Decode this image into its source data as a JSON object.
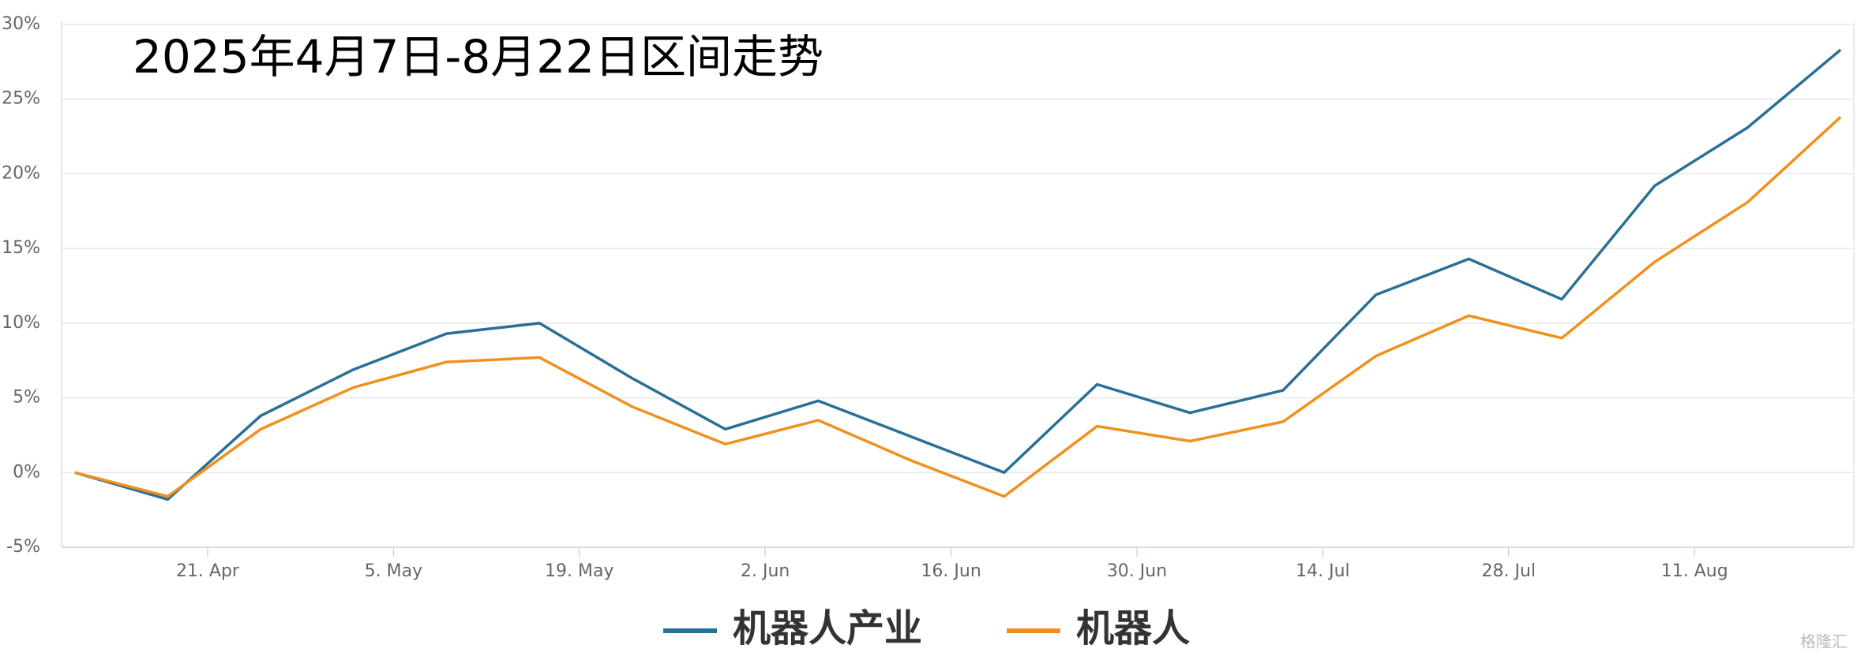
{
  "chart_data": {
    "type": "line",
    "title": "2025年4月7日-8月22日区间走势",
    "x": [
      "11. Apr",
      "18. Apr",
      "25. Apr",
      "2. May",
      "9. May",
      "16. May",
      "23. May",
      "30. May",
      "6. Jun",
      "13. Jun",
      "20. Jun",
      "27. Jun",
      "4. Jul",
      "11. Jul",
      "18. Jul",
      "25. Jul",
      "1. Aug",
      "8. Aug",
      "15. Aug",
      "22. Aug"
    ],
    "xlim": [
      "10. Apr",
      "23. Aug"
    ],
    "xticks": [
      "21. Apr",
      "5. May",
      "19. May",
      "2. Jun",
      "16. Jun",
      "30. Jun",
      "14. Jul",
      "28. Jul",
      "11. Aug"
    ],
    "ylim": [
      -5,
      30
    ],
    "yticks": [
      {
        "value": -5,
        "label": "-5%"
      },
      {
        "value": 0,
        "label": "0%"
      },
      {
        "value": 5,
        "label": "5%"
      },
      {
        "value": 10,
        "label": "10%"
      },
      {
        "value": 15,
        "label": "15%"
      },
      {
        "value": 20,
        "label": "20%"
      },
      {
        "value": 25,
        "label": "25%"
      },
      {
        "value": 30,
        "label": "30%"
      }
    ],
    "grid": true,
    "legend": "bottom",
    "series": [
      {
        "name": "机器人产业",
        "color": "#2a6f97",
        "values": [
          0,
          -1.8,
          3.8,
          6.9,
          9.3,
          10.0,
          6.3,
          2.9,
          4.8,
          2.4,
          0.0,
          5.9,
          4.0,
          5.5,
          11.9,
          14.3,
          11.6,
          19.2,
          23.1,
          28.3
        ]
      },
      {
        "name": "机器人",
        "color": "#f0901e",
        "values": [
          0,
          -1.6,
          2.9,
          5.7,
          7.4,
          7.7,
          4.4,
          1.9,
          3.5,
          0.8,
          -1.6,
          3.1,
          2.1,
          3.4,
          7.8,
          10.5,
          9.0,
          14.1,
          18.1,
          23.8
        ]
      }
    ],
    "watermark": "格隆汇"
  }
}
